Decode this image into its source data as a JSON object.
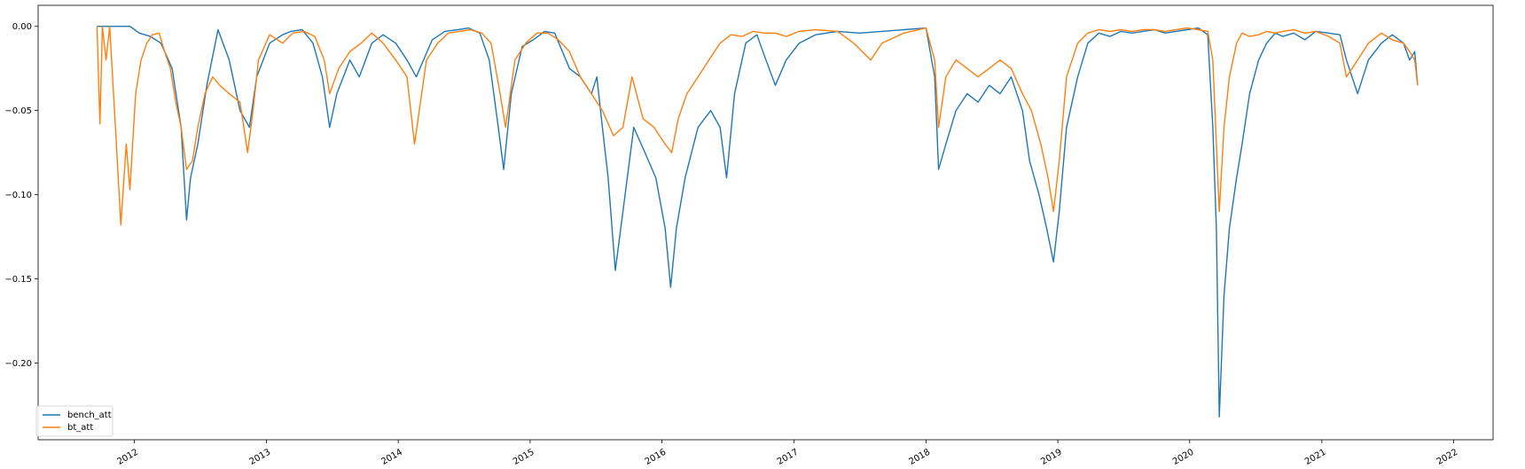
{
  "chart_data": {
    "type": "line",
    "title": "",
    "xlabel": "",
    "ylabel": "",
    "ylim": [
      -0.2456,
      0.0125
    ],
    "xlim": [
      "2011-04-10",
      "2022-04-20"
    ],
    "y_axis": {
      "tick_values": [
        0.0,
        -0.05,
        -0.1,
        -0.15,
        -0.2
      ],
      "tick_labels": [
        "0.00",
        "−0.05",
        "−0.10",
        "−0.15",
        "−0.20"
      ]
    },
    "x_axis": {
      "tick_dates": [
        "2012-01-01",
        "2013-01-01",
        "2014-01-01",
        "2015-01-01",
        "2016-01-01",
        "2017-01-01",
        "2018-01-01",
        "2019-01-01",
        "2020-01-01",
        "2021-01-01",
        "2022-01-01"
      ],
      "tick_labels": [
        "2012",
        "2013",
        "2014",
        "2015",
        "2016",
        "2017",
        "2018",
        "2019",
        "2020",
        "2021",
        "2022"
      ],
      "label_rotation": "30 degrees, anchored right"
    },
    "grid": false,
    "legend": {
      "position": "lower-left"
    },
    "series": [
      {
        "name": "bench_att",
        "color": "#1f77b4",
        "x": [
          "2011-09-20",
          "2011-10-10",
          "2011-11-15",
          "2011-12-20",
          "2012-01-15",
          "2012-02-15",
          "2012-03-15",
          "2012-04-15",
          "2012-05-10",
          "2012-05-25",
          "2012-06-05",
          "2012-06-25",
          "2012-07-20",
          "2012-08-20",
          "2012-09-20",
          "2012-10-20",
          "2012-11-15",
          "2012-12-05",
          "2013-01-10",
          "2013-02-15",
          "2013-03-10",
          "2013-04-10",
          "2013-05-10",
          "2013-06-05",
          "2013-06-25",
          "2013-07-15",
          "2013-08-20",
          "2013-09-15",
          "2013-10-20",
          "2013-11-20",
          "2013-12-25",
          "2014-01-25",
          "2014-02-20",
          "2014-04-05",
          "2014-05-10",
          "2014-06-15",
          "2014-07-15",
          "2014-08-15",
          "2014-09-10",
          "2014-10-05",
          "2014-10-20",
          "2014-11-10",
          "2014-12-10",
          "2015-01-10",
          "2015-02-10",
          "2015-03-10",
          "2015-04-20",
          "2015-05-20",
          "2015-06-20",
          "2015-07-05",
          "2015-07-20",
          "2015-08-05",
          "2015-08-25",
          "2015-09-15",
          "2015-10-15",
          "2015-11-15",
          "2015-12-15",
          "2016-01-10",
          "2016-01-25",
          "2016-02-10",
          "2016-03-05",
          "2016-04-10",
          "2016-05-15",
          "2016-06-10",
          "2016-06-28",
          "2016-07-20",
          "2016-08-20",
          "2016-09-20",
          "2016-10-15",
          "2016-11-10",
          "2016-12-10",
          "2017-01-15",
          "2017-03-01",
          "2017-05-01",
          "2017-07-01",
          "2017-09-01",
          "2017-11-01",
          "2018-01-01",
          "2018-01-25",
          "2018-02-05",
          "2018-02-25",
          "2018-03-25",
          "2018-04-25",
          "2018-05-25",
          "2018-06-25",
          "2018-07-25",
          "2018-08-25",
          "2018-09-25",
          "2018-10-15",
          "2018-11-10",
          "2018-12-01",
          "2018-12-20",
          "2019-01-05",
          "2019-01-25",
          "2019-02-25",
          "2019-03-25",
          "2019-04-25",
          "2019-05-25",
          "2019-06-25",
          "2019-07-25",
          "2019-08-25",
          "2019-09-25",
          "2019-10-25",
          "2019-11-25",
          "2019-12-25",
          "2020-01-25",
          "2020-02-20",
          "2020-03-05",
          "2020-03-15",
          "2020-03-23",
          "2020-04-05",
          "2020-04-20",
          "2020-05-10",
          "2020-05-25",
          "2020-06-15",
          "2020-07-10",
          "2020-08-01",
          "2020-08-25",
          "2020-09-15",
          "2020-10-15",
          "2020-11-15",
          "2020-12-15",
          "2021-01-20",
          "2021-02-20",
          "2021-03-10",
          "2021-04-10",
          "2021-05-10",
          "2021-06-15",
          "2021-07-15",
          "2021-08-15",
          "2021-09-01",
          "2021-09-15",
          "2021-09-23"
        ],
        "values": [
          0.0,
          0.0,
          0.0,
          0.0,
          -0.004,
          -0.006,
          -0.01,
          -0.025,
          -0.06,
          -0.115,
          -0.09,
          -0.07,
          -0.035,
          -0.002,
          -0.02,
          -0.05,
          -0.06,
          -0.03,
          -0.01,
          -0.005,
          -0.003,
          -0.002,
          -0.01,
          -0.03,
          -0.06,
          -0.04,
          -0.02,
          -0.03,
          -0.01,
          -0.005,
          -0.01,
          -0.02,
          -0.03,
          -0.008,
          -0.003,
          -0.002,
          -0.001,
          -0.004,
          -0.02,
          -0.06,
          -0.085,
          -0.04,
          -0.012,
          -0.008,
          -0.003,
          -0.004,
          -0.025,
          -0.03,
          -0.04,
          -0.03,
          -0.06,
          -0.09,
          -0.145,
          -0.11,
          -0.06,
          -0.075,
          -0.09,
          -0.12,
          -0.155,
          -0.12,
          -0.09,
          -0.06,
          -0.05,
          -0.06,
          -0.09,
          -0.04,
          -0.01,
          -0.005,
          -0.02,
          -0.035,
          -0.02,
          -0.01,
          -0.005,
          -0.003,
          -0.004,
          -0.003,
          -0.002,
          -0.001,
          -0.03,
          -0.085,
          -0.07,
          -0.05,
          -0.04,
          -0.045,
          -0.035,
          -0.04,
          -0.03,
          -0.05,
          -0.08,
          -0.1,
          -0.12,
          -0.14,
          -0.11,
          -0.06,
          -0.03,
          -0.01,
          -0.004,
          -0.006,
          -0.003,
          -0.004,
          -0.003,
          -0.002,
          -0.004,
          -0.003,
          -0.002,
          -0.001,
          -0.005,
          -0.06,
          -0.12,
          -0.232,
          -0.16,
          -0.12,
          -0.09,
          -0.07,
          -0.04,
          -0.02,
          -0.01,
          -0.004,
          -0.006,
          -0.004,
          -0.008,
          -0.003,
          -0.004,
          -0.005,
          -0.02,
          -0.04,
          -0.02,
          -0.01,
          -0.005,
          -0.01,
          -0.02,
          -0.015,
          -0.035
        ]
      },
      {
        "name": "bt_att",
        "color": "#ff7f0e",
        "x": [
          "2011-09-20",
          "2011-09-28",
          "2011-10-05",
          "2011-10-15",
          "2011-10-25",
          "2011-11-10",
          "2011-11-25",
          "2011-12-10",
          "2011-12-20",
          "2012-01-05",
          "2012-01-20",
          "2012-02-05",
          "2012-02-20",
          "2012-03-10",
          "2012-03-25",
          "2012-04-10",
          "2012-04-25",
          "2012-05-10",
          "2012-05-25",
          "2012-06-10",
          "2012-06-25",
          "2012-07-15",
          "2012-08-05",
          "2012-08-25",
          "2012-09-20",
          "2012-10-20",
          "2012-11-10",
          "2012-11-25",
          "2012-12-10",
          "2013-01-10",
          "2013-02-15",
          "2013-03-15",
          "2013-04-15",
          "2013-05-15",
          "2013-06-10",
          "2013-06-25",
          "2013-07-20",
          "2013-08-20",
          "2013-09-20",
          "2013-10-20",
          "2013-11-20",
          "2013-12-25",
          "2014-01-25",
          "2014-02-15",
          "2014-03-20",
          "2014-04-20",
          "2014-05-20",
          "2014-06-20",
          "2014-07-20",
          "2014-08-20",
          "2014-09-15",
          "2014-10-10",
          "2014-10-25",
          "2014-11-20",
          "2014-12-20",
          "2015-01-20",
          "2015-02-20",
          "2015-03-20",
          "2015-04-20",
          "2015-05-20",
          "2015-06-20",
          "2015-07-20",
          "2015-08-20",
          "2015-09-15",
          "2015-10-10",
          "2015-11-10",
          "2015-12-10",
          "2016-01-10",
          "2016-01-28",
          "2016-02-15",
          "2016-03-10",
          "2016-04-10",
          "2016-05-10",
          "2016-06-10",
          "2016-07-10",
          "2016-08-10",
          "2016-09-10",
          "2016-10-10",
          "2016-11-10",
          "2016-12-10",
          "2017-01-15",
          "2017-03-01",
          "2017-05-01",
          "2017-06-15",
          "2017-08-01",
          "2017-09-01",
          "2017-11-01",
          "2018-01-01",
          "2018-01-25",
          "2018-02-05",
          "2018-02-25",
          "2018-03-25",
          "2018-04-25",
          "2018-05-25",
          "2018-06-25",
          "2018-07-25",
          "2018-08-25",
          "2018-09-25",
          "2018-10-20",
          "2018-11-15",
          "2018-12-05",
          "2018-12-20",
          "2019-01-05",
          "2019-01-25",
          "2019-02-25",
          "2019-03-25",
          "2019-04-25",
          "2019-05-25",
          "2019-06-25",
          "2019-07-25",
          "2019-08-25",
          "2019-09-25",
          "2019-10-25",
          "2019-11-25",
          "2019-12-25",
          "2020-01-25",
          "2020-02-20",
          "2020-03-05",
          "2020-03-15",
          "2020-03-23",
          "2020-04-05",
          "2020-04-20",
          "2020-05-10",
          "2020-05-25",
          "2020-06-15",
          "2020-07-10",
          "2020-08-01",
          "2020-08-25",
          "2020-09-15",
          "2020-10-15",
          "2020-11-15",
          "2020-12-15",
          "2021-01-20",
          "2021-02-20",
          "2021-03-10",
          "2021-04-10",
          "2021-05-10",
          "2021-06-15",
          "2021-07-15",
          "2021-08-15",
          "2021-09-01",
          "2021-09-15",
          "2021-09-23"
        ],
        "values": [
          0.0,
          -0.058,
          0.0,
          -0.02,
          0.0,
          -0.06,
          -0.118,
          -0.07,
          -0.097,
          -0.04,
          -0.02,
          -0.01,
          -0.005,
          -0.004,
          -0.015,
          -0.025,
          -0.045,
          -0.06,
          -0.085,
          -0.08,
          -0.06,
          -0.04,
          -0.03,
          -0.035,
          -0.04,
          -0.045,
          -0.075,
          -0.05,
          -0.02,
          -0.005,
          -0.01,
          -0.004,
          -0.003,
          -0.006,
          -0.02,
          -0.04,
          -0.025,
          -0.015,
          -0.01,
          -0.004,
          -0.01,
          -0.02,
          -0.03,
          -0.07,
          -0.02,
          -0.01,
          -0.004,
          -0.003,
          -0.002,
          -0.004,
          -0.01,
          -0.04,
          -0.06,
          -0.02,
          -0.01,
          -0.004,
          -0.004,
          -0.008,
          -0.015,
          -0.03,
          -0.04,
          -0.05,
          -0.065,
          -0.06,
          -0.03,
          -0.055,
          -0.06,
          -0.07,
          -0.075,
          -0.055,
          -0.04,
          -0.03,
          -0.02,
          -0.01,
          -0.005,
          -0.006,
          -0.003,
          -0.004,
          -0.004,
          -0.006,
          -0.003,
          -0.002,
          -0.003,
          -0.01,
          -0.02,
          -0.01,
          -0.004,
          -0.001,
          -0.02,
          -0.06,
          -0.03,
          -0.02,
          -0.025,
          -0.03,
          -0.025,
          -0.02,
          -0.025,
          -0.04,
          -0.05,
          -0.07,
          -0.09,
          -0.11,
          -0.08,
          -0.03,
          -0.01,
          -0.004,
          -0.002,
          -0.003,
          -0.002,
          -0.003,
          -0.002,
          -0.002,
          -0.003,
          -0.002,
          -0.001,
          -0.002,
          -0.003,
          -0.02,
          -0.07,
          -0.11,
          -0.06,
          -0.03,
          -0.01,
          -0.004,
          -0.006,
          -0.005,
          -0.003,
          -0.004,
          -0.003,
          -0.002,
          -0.004,
          -0.003,
          -0.006,
          -0.01,
          -0.03,
          -0.02,
          -0.01,
          -0.004,
          -0.008,
          -0.01,
          -0.015,
          -0.02,
          -0.035
        ]
      }
    ]
  }
}
